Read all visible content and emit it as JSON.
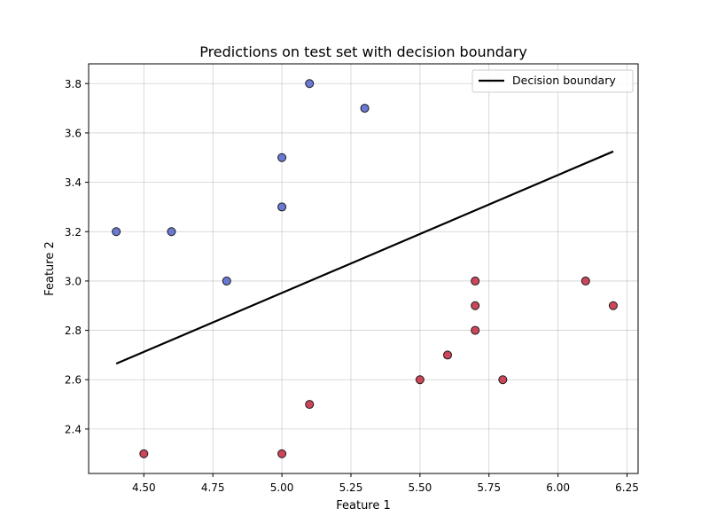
{
  "chart_data": {
    "type": "scatter",
    "title": "Predictions on test set with decision boundary",
    "xlabel": "Feature 1",
    "ylabel": "Feature 2",
    "xlim": [
      4.3,
      6.29
    ],
    "ylim": [
      2.22,
      3.88
    ],
    "xticks": [
      "4.50",
      "4.75",
      "5.00",
      "5.25",
      "5.50",
      "5.75",
      "6.00",
      "6.25"
    ],
    "yticks": [
      "2.4",
      "2.6",
      "2.8",
      "3.0",
      "3.2",
      "3.4",
      "3.6",
      "3.8"
    ],
    "grid": true,
    "legend_position": "top-right",
    "colors": {
      "class0": "#5a6bcf",
      "class1": "#c93248",
      "boundary": "#000000"
    },
    "points": [
      {
        "x": 5.1,
        "y": 3.8,
        "class": 0
      },
      {
        "x": 5.3,
        "y": 3.7,
        "class": 0
      },
      {
        "x": 5.0,
        "y": 3.5,
        "class": 0
      },
      {
        "x": 5.0,
        "y": 3.3,
        "class": 0
      },
      {
        "x": 4.4,
        "y": 3.2,
        "class": 0
      },
      {
        "x": 4.6,
        "y": 3.2,
        "class": 0
      },
      {
        "x": 4.8,
        "y": 3.0,
        "class": 0
      },
      {
        "x": 5.7,
        "y": 3.0,
        "class": 1
      },
      {
        "x": 6.1,
        "y": 3.0,
        "class": 1
      },
      {
        "x": 5.7,
        "y": 2.9,
        "class": 1
      },
      {
        "x": 6.2,
        "y": 2.9,
        "class": 1
      },
      {
        "x": 5.7,
        "y": 2.8,
        "class": 1
      },
      {
        "x": 5.6,
        "y": 2.7,
        "class": 1
      },
      {
        "x": 5.5,
        "y": 2.6,
        "class": 1
      },
      {
        "x": 5.8,
        "y": 2.6,
        "class": 1
      },
      {
        "x": 5.1,
        "y": 2.5,
        "class": 1
      },
      {
        "x": 4.5,
        "y": 2.3,
        "class": 1
      },
      {
        "x": 5.0,
        "y": 2.3,
        "class": 1
      }
    ],
    "boundary": {
      "name": "Decision boundary",
      "x": [
        4.4,
        6.2
      ],
      "y": [
        2.665,
        3.525
      ]
    }
  }
}
